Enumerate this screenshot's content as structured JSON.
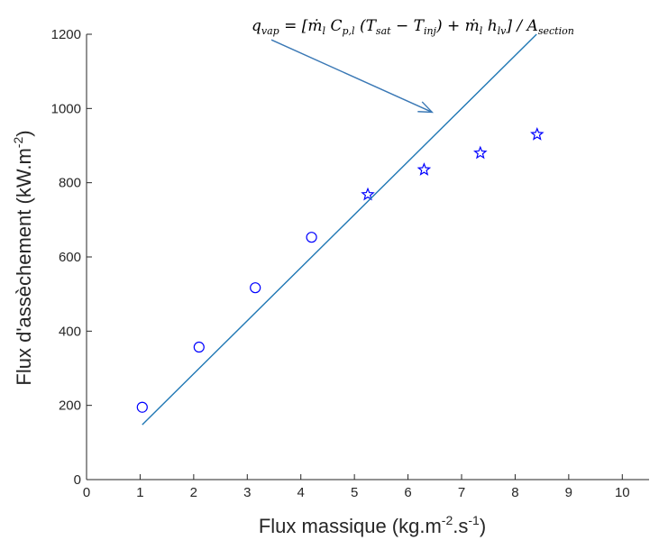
{
  "chart_data": {
    "type": "scatter",
    "xlabel": "Flux massique (kg.m-2.s-1)",
    "ylabel": "Flux d'assèchement (kW.m-2)",
    "xlim": [
      0,
      10.5
    ],
    "ylim": [
      0,
      1200
    ],
    "x_ticks": [
      0,
      1,
      2,
      3,
      4,
      5,
      6,
      7,
      8,
      9,
      10
    ],
    "y_ticks": [
      0,
      200,
      400,
      600,
      800,
      1000,
      1200
    ],
    "grid": false,
    "series": [
      {
        "marker": "circle",
        "color": "#0000ff",
        "x": [
          1.04,
          2.1,
          3.15,
          4.2
        ],
        "y": [
          195,
          357,
          517,
          653
        ]
      },
      {
        "marker": "star",
        "color": "#0000ff",
        "x": [
          5.25,
          6.3,
          7.35,
          8.41
        ],
        "y": [
          768,
          835,
          880,
          930
        ]
      },
      {
        "marker": "line",
        "color": "#1f77b4",
        "x": [
          1.04,
          8.4
        ],
        "y": [
          148,
          1200
        ]
      }
    ],
    "annotation": {
      "text": "q_vap = [ṁ_l C_p,l (T_sat − T_inj) + ṁ_l h_lv] / A_section",
      "arrow_from": [
        3.45,
        1185
      ],
      "arrow_to": [
        6.45,
        990
      ],
      "arrow_color": "#3a78b5"
    }
  }
}
